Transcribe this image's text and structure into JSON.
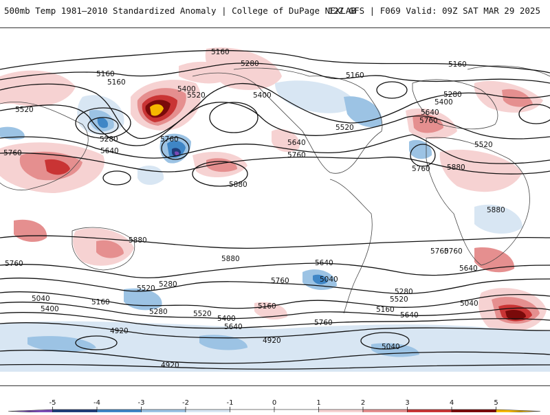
{
  "header": {
    "title": "500mb Temp 1981–2010 Standardized Anomaly | College of DuPage NEXLAB",
    "run_info": "12Z GFS | F069 Valid: 09Z SAT MAR 29 2025"
  },
  "contour_labels": [
    {
      "id": "l1",
      "text": "5160"
    },
    {
      "id": "l2",
      "text": "5280"
    },
    {
      "id": "l3",
      "text": "5160"
    },
    {
      "id": "l4",
      "text": "5160"
    },
    {
      "id": "l5",
      "text": "5520"
    },
    {
      "id": "l6",
      "text": "5400"
    },
    {
      "id": "l7",
      "text": "5520"
    },
    {
      "id": "l8",
      "text": "5400"
    },
    {
      "id": "l9",
      "text": "5280"
    },
    {
      "id": "l10",
      "text": "5640"
    },
    {
      "id": "l11",
      "text": "5760"
    },
    {
      "id": "l12",
      "text": "5760"
    },
    {
      "id": "l13",
      "text": "5520"
    },
    {
      "id": "l14",
      "text": "5640"
    },
    {
      "id": "l15",
      "text": "5760"
    },
    {
      "id": "l16",
      "text": "5160"
    },
    {
      "id": "l17",
      "text": "5160"
    },
    {
      "id": "l18",
      "text": "5280"
    },
    {
      "id": "l19",
      "text": "5400"
    },
    {
      "id": "l20",
      "text": "5640"
    },
    {
      "id": "l21",
      "text": "5760"
    },
    {
      "id": "l22",
      "text": "5520"
    },
    {
      "id": "l23",
      "text": "5760"
    },
    {
      "id": "l24",
      "text": "5880"
    },
    {
      "id": "l25",
      "text": "5880"
    },
    {
      "id": "l26",
      "text": "5880"
    },
    {
      "id": "l27",
      "text": "5880"
    },
    {
      "id": "l28",
      "text": "5880"
    },
    {
      "id": "l29",
      "text": "5760"
    },
    {
      "id": "l30",
      "text": "5760"
    },
    {
      "id": "l31",
      "text": "5640"
    },
    {
      "id": "l32",
      "text": "5760"
    },
    {
      "id": "l33",
      "text": "5640"
    },
    {
      "id": "l34",
      "text": "5520"
    },
    {
      "id": "l35",
      "text": "5280"
    },
    {
      "id": "l36",
      "text": "5160"
    },
    {
      "id": "l37",
      "text": "5040"
    },
    {
      "id": "l38",
      "text": "5400"
    },
    {
      "id": "l39",
      "text": "5280"
    },
    {
      "id": "l40",
      "text": "5520"
    },
    {
      "id": "l41",
      "text": "5160"
    },
    {
      "id": "l42",
      "text": "5400"
    },
    {
      "id": "l43",
      "text": "5640"
    },
    {
      "id": "l44",
      "text": "5040"
    },
    {
      "id": "l45",
      "text": "5280"
    },
    {
      "id": "l46",
      "text": "5520"
    },
    {
      "id": "l47",
      "text": "5160"
    },
    {
      "id": "l48",
      "text": "5640"
    },
    {
      "id": "l49",
      "text": "5760"
    },
    {
      "id": "l50",
      "text": "5040"
    },
    {
      "id": "l51",
      "text": "4920"
    },
    {
      "id": "l52",
      "text": "4920"
    },
    {
      "id": "l53",
      "text": "5040"
    },
    {
      "id": "l54",
      "text": "4920"
    },
    {
      "id": "l55",
      "text": "5760"
    }
  ],
  "colorbar": {
    "ticks": [
      "-5",
      "-4",
      "-3",
      "-2",
      "-1",
      "0",
      "1",
      "2",
      "3",
      "4",
      "5"
    ],
    "bins": [
      {
        "color": "#7b4bb5"
      },
      {
        "color": "#1f3d7a"
      },
      {
        "color": "#3f86c6"
      },
      {
        "color": "#9cc3e4"
      },
      {
        "color": "#d8e6f3"
      },
      {
        "color": "#ffffff"
      },
      {
        "color": "#ffffff"
      },
      {
        "color": "#f6d2d2"
      },
      {
        "color": "#e58f8f"
      },
      {
        "color": "#c93434"
      },
      {
        "color": "#7a0a0a"
      },
      {
        "color": "#f5b800"
      }
    ]
  }
}
